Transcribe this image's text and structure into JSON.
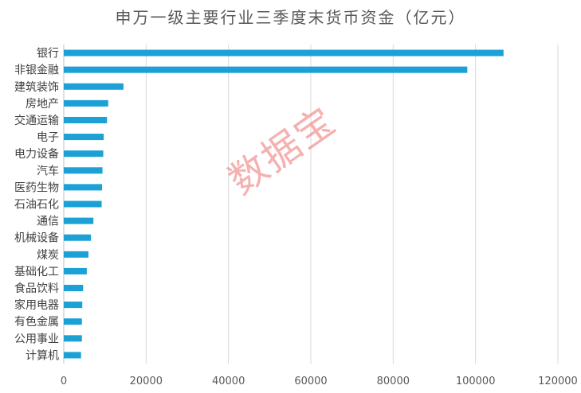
{
  "chart_data": {
    "type": "bar",
    "orientation": "horizontal",
    "title": "申万一级主要行业三季度末货币资金（亿元）",
    "categories": [
      "银行",
      "非银金融",
      "建筑装饰",
      "房地产",
      "交通运输",
      "电子",
      "电力设备",
      "汽车",
      "医药生物",
      "石油石化",
      "通信",
      "机械设备",
      "煤炭",
      "基础化工",
      "食品饮料",
      "家用电器",
      "有色金属",
      "公用事业",
      "计算机"
    ],
    "values": [
      106800,
      98000,
      14500,
      10800,
      10500,
      9700,
      9600,
      9400,
      9300,
      9200,
      7200,
      6600,
      6000,
      5600,
      4700,
      4500,
      4400,
      4400,
      4200
    ],
    "xlim": [
      0,
      120000
    ],
    "xticks": [
      0,
      20000,
      40000,
      60000,
      80000,
      100000,
      120000
    ],
    "grid": "vertical",
    "bar_color": "#1ba1d5"
  },
  "watermark": "数据宝"
}
